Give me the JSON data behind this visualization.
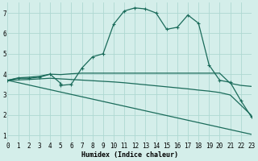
{
  "xlabel": "Humidex (Indice chaleur)",
  "background_color": "#d4eeea",
  "grid_color": "#aed8d2",
  "line_color": "#1a6b5a",
  "xlim": [
    0,
    23
  ],
  "ylim": [
    0.7,
    7.5
  ],
  "xticks": [
    0,
    1,
    2,
    3,
    4,
    5,
    6,
    7,
    8,
    9,
    10,
    11,
    12,
    13,
    14,
    15,
    16,
    17,
    18,
    19,
    20,
    21,
    22,
    23
  ],
  "yticks": [
    1,
    2,
    3,
    4,
    5,
    6,
    7
  ],
  "curve1_x": [
    0,
    1,
    2,
    3,
    4,
    5,
    5,
    6,
    7,
    8,
    9,
    10,
    11,
    12,
    13,
    14,
    15,
    16,
    17,
    18,
    19,
    20,
    21,
    22,
    23
  ],
  "curve1_y": [
    3.7,
    3.8,
    3.8,
    3.85,
    4.0,
    3.55,
    3.45,
    3.5,
    4.3,
    4.85,
    5.0,
    6.45,
    7.1,
    7.25,
    7.2,
    7.0,
    6.2,
    6.3,
    6.9,
    6.5,
    4.45,
    3.7,
    3.6,
    2.7,
    1.9
  ],
  "curve2_x": [
    0,
    1,
    2,
    3,
    4,
    5,
    6,
    7,
    8,
    9,
    10,
    11,
    12,
    13,
    14,
    15,
    16,
    17,
    18,
    19,
    20,
    21,
    22,
    23
  ],
  "curve2_y": [
    3.7,
    3.82,
    3.85,
    3.9,
    4.0,
    3.98,
    4.02,
    4.05,
    4.05,
    4.05,
    4.05,
    4.05,
    4.05,
    4.05,
    4.05,
    4.05,
    4.05,
    4.05,
    4.05,
    4.05,
    4.05,
    3.55,
    3.45,
    3.4
  ],
  "curve3_x": [
    0,
    1,
    2,
    3,
    4,
    5,
    6,
    7,
    8,
    9,
    10,
    11,
    12,
    13,
    14,
    15,
    16,
    17,
    18,
    19,
    20,
    21,
    22,
    23
  ],
  "curve3_y": [
    3.7,
    3.72,
    3.74,
    3.77,
    3.8,
    3.77,
    3.74,
    3.71,
    3.68,
    3.65,
    3.62,
    3.58,
    3.53,
    3.48,
    3.43,
    3.38,
    3.33,
    3.28,
    3.22,
    3.17,
    3.1,
    2.98,
    2.48,
    1.98
  ],
  "curve4_x": [
    0,
    23
  ],
  "curve4_y": [
    3.7,
    1.05
  ]
}
